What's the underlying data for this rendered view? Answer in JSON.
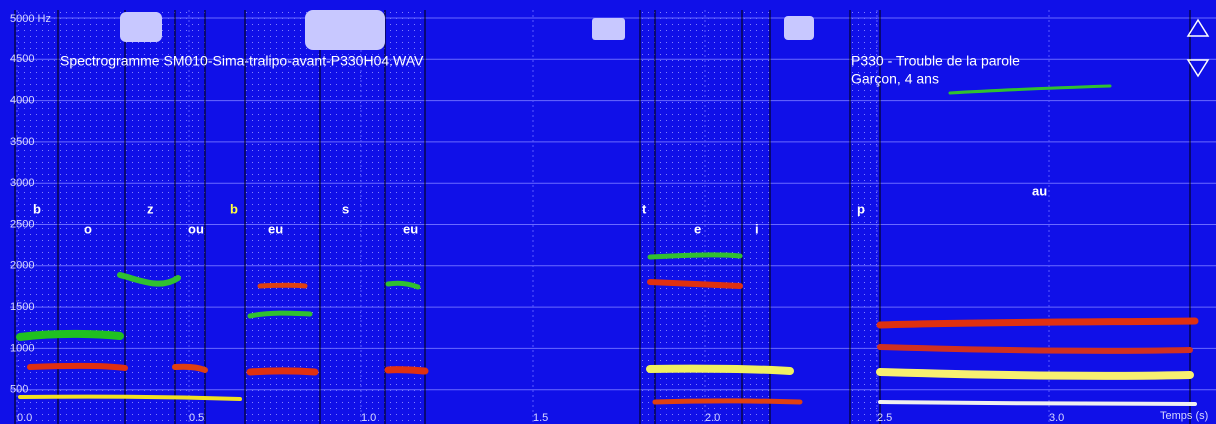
{
  "window": {
    "file_title": "Spectrogramme SM010-Sima-tralipo-avant-P330H04.WAV",
    "patient_line": "P330 -   Trouble de la parole",
    "patient_detail": "Garçon, 4 ans",
    "y_axis": {
      "ticks": [
        {
          "value": 5000,
          "label": "5000 Hz"
        },
        4500,
        4000,
        3500,
        3000,
        2500,
        2000,
        1500,
        1000,
        500
      ]
    },
    "x_axis": {
      "label": "Temps (s)",
      "ticks": [
        {
          "value": 0,
          "label": "0.0"
        },
        0.5,
        {
          "value": 1,
          "label": "1.0"
        },
        1.5,
        {
          "value": 2,
          "label": "2.0"
        },
        2.5,
        {
          "value": 3,
          "label": "3.0"
        }
      ]
    },
    "phonemes": [
      "b",
      "o",
      "z",
      "ou",
      "b",
      "eu",
      "s",
      "eu",
      "t",
      "e",
      "i",
      "p",
      "au"
    ]
  }
}
